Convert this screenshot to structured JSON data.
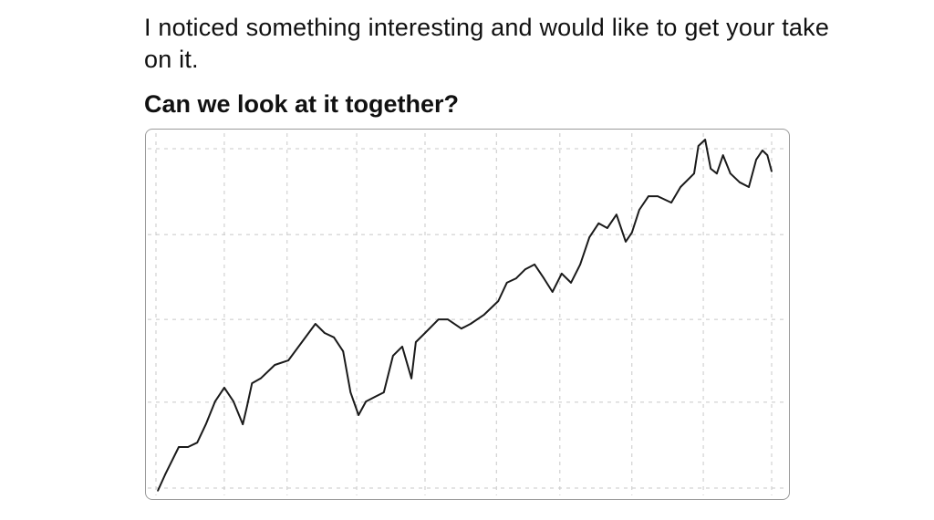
{
  "text": {
    "intro": "I noticed something interesting and would like to get your take on it.",
    "question": "Can we look at it together?"
  },
  "colors": {
    "line": "#1a1a1a",
    "grid": "#c8c8c8",
    "border": "#9a9a9a"
  },
  "chart_data": {
    "type": "line",
    "title": "",
    "xlabel": "",
    "ylabel": "",
    "grid": true,
    "xlim": [
      0,
      100
    ],
    "ylim": [
      0,
      100
    ],
    "x_grid": [
      0,
      11.1,
      21.3,
      32.6,
      43.7,
      55.3,
      65.6,
      77.3,
      88.9,
      100
    ],
    "y_grid": [
      0,
      25.3,
      49.7,
      74.7,
      100
    ],
    "series": [
      {
        "x": [
          0.3,
          1.5,
          3.7,
          5.2,
          6.7,
          8.1,
          9.6,
          11.1,
          12.6,
          14.1,
          14.8,
          15.6,
          17.0,
          19.3,
          21.5,
          23.7,
          25.9,
          27.4,
          28.9,
          30.4,
          31.6,
          32.9,
          34.1,
          35.6,
          37.0,
          38.5,
          40.0,
          41.5,
          42.2,
          43.7,
          45.9,
          47.4,
          49.6,
          51.1,
          53.3,
          55.6,
          57.0,
          58.5,
          60.0,
          61.5,
          63.0,
          64.4,
          65.9,
          67.4,
          68.9,
          70.4,
          71.9,
          73.3,
          74.8,
          76.3,
          77.3,
          78.5,
          80.0,
          81.5,
          83.7,
          85.2,
          87.4,
          88.1,
          89.2,
          90.1,
          91.1,
          92.1,
          93.3,
          94.8,
          96.3,
          97.5,
          98.5,
          99.3,
          100
        ],
        "y": [
          -0.8,
          4.0,
          12.1,
          12.1,
          13.4,
          18.8,
          25.5,
          29.6,
          25.5,
          18.8,
          24.2,
          30.9,
          32.3,
          36.3,
          37.6,
          43.0,
          48.4,
          45.7,
          44.4,
          40.3,
          28.2,
          21.5,
          25.5,
          26.9,
          28.2,
          39.0,
          41.7,
          32.3,
          43.0,
          45.7,
          49.7,
          49.7,
          47.0,
          48.4,
          51.1,
          55.1,
          60.5,
          61.8,
          64.5,
          65.9,
          61.8,
          57.8,
          63.2,
          60.5,
          65.9,
          73.9,
          78.0,
          76.6,
          80.6,
          72.6,
          75.3,
          82.0,
          86.0,
          86.0,
          84.1,
          88.7,
          92.7,
          100.8,
          102.7,
          94.1,
          92.7,
          98.1,
          92.7,
          90.1,
          88.7,
          96.8,
          99.5,
          98.1,
          93.3
        ]
      }
    ]
  }
}
